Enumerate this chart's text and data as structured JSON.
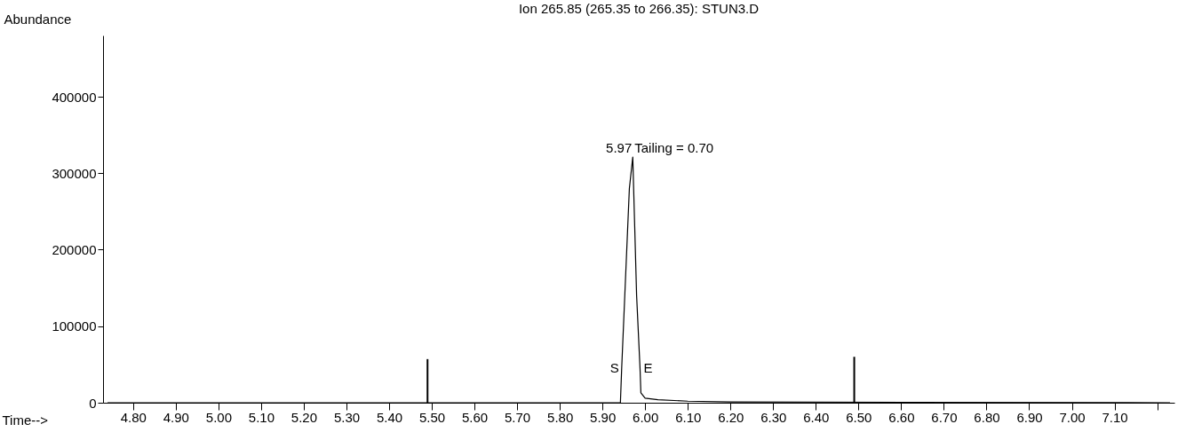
{
  "chart_data": {
    "type": "line",
    "title": "Ion 265.85 (265.35 to 266.35): STUN3.D",
    "xlabel": "Time-->",
    "ylabel": "Abundance",
    "xlim": [
      4.74,
      7.23
    ],
    "ylim": [
      0,
      480000
    ],
    "xticks": [
      {
        "value": 4.8,
        "label": "4.80"
      },
      {
        "value": 4.9,
        "label": "4.90"
      },
      {
        "value": 5.0,
        "label": "5.00"
      },
      {
        "value": 5.1,
        "label": "5.10"
      },
      {
        "value": 5.2,
        "label": "5.20"
      },
      {
        "value": 5.3,
        "label": "5.30"
      },
      {
        "value": 5.4,
        "label": "5.40"
      },
      {
        "value": 5.5,
        "label": "5.50"
      },
      {
        "value": 5.6,
        "label": "5.60"
      },
      {
        "value": 5.7,
        "label": "5.70"
      },
      {
        "value": 5.8,
        "label": "5.80"
      },
      {
        "value": 5.9,
        "label": "5.90"
      },
      {
        "value": 6.0,
        "label": "6.00"
      },
      {
        "value": 6.1,
        "label": "6.10"
      },
      {
        "value": 6.2,
        "label": "6.20"
      },
      {
        "value": 6.3,
        "label": "6.30"
      },
      {
        "value": 6.4,
        "label": "6.40"
      },
      {
        "value": 6.5,
        "label": "6.50"
      },
      {
        "value": 6.6,
        "label": "6.60"
      },
      {
        "value": 6.7,
        "label": "6.70"
      },
      {
        "value": 6.8,
        "label": "6.80"
      },
      {
        "value": 6.9,
        "label": "6.90"
      },
      {
        "value": 7.0,
        "label": "7.00"
      },
      {
        "value": 7.1,
        "label": "7.10"
      },
      {
        "value": 7.2,
        "label": null
      }
    ],
    "yticks": [
      0,
      100000,
      200000,
      300000,
      400000
    ],
    "series": [
      {
        "color": "#000000",
        "x": [
          4.74,
          5.9,
          5.942,
          5.945,
          5.963,
          5.971,
          5.98,
          5.988,
          5.99,
          6.0,
          6.03,
          6.1,
          6.2,
          7.23
        ],
        "values": [
          0,
          0,
          0,
          45000,
          280000,
          321000,
          140000,
          45000,
          13000,
          6000,
          4000,
          2000,
          1000,
          0
        ]
      },
      {
        "type": "bar",
        "color": "#000000",
        "x": [
          5.49,
          6.49
        ],
        "values": [
          57000,
          60000
        ]
      }
    ],
    "annotations": [
      {
        "text": "5.97",
        "x": 5.971,
        "y": 321000
      },
      {
        "text": "Tailing =  0.70",
        "x": 5.971,
        "y": 321000
      },
      {
        "text": "S",
        "x": 5.945,
        "y": 45000
      },
      {
        "text": "E",
        "x": 5.988,
        "y": 45000
      }
    ],
    "grid": false
  }
}
